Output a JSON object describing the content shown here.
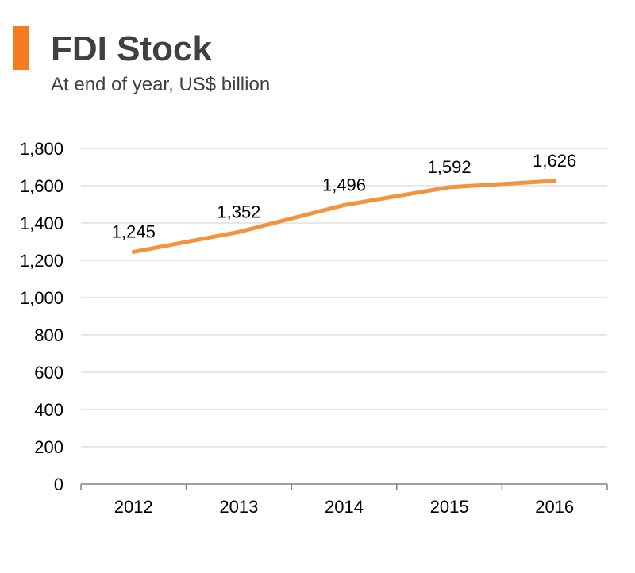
{
  "header": {
    "title": "FDI Stock",
    "subtitle": "At end of year, US$ billion"
  },
  "colors": {
    "accent": "#F47B20",
    "line": "#F4933F",
    "grid": "#D9D9D9",
    "axis": "#808080",
    "text": "#404040"
  },
  "chart_data": {
    "type": "line",
    "title": "FDI Stock",
    "subtitle": "At end of year, US$ billion",
    "xlabel": "",
    "ylabel": "",
    "categories": [
      "2012",
      "2013",
      "2014",
      "2015",
      "2016"
    ],
    "series": [
      {
        "name": "FDI Stock",
        "values": [
          1245,
          1352,
          1496,
          1592,
          1626
        ]
      }
    ],
    "data_labels": [
      "1,245",
      "1,352",
      "1,496",
      "1,592",
      "1,626"
    ],
    "ylim": [
      0,
      1800
    ],
    "yticks": [
      0,
      200,
      400,
      600,
      800,
      1000,
      1200,
      1400,
      1600,
      1800
    ],
    "ytick_labels": [
      "0",
      "200",
      "400",
      "600",
      "800",
      "1,000",
      "1,200",
      "1,400",
      "1,600",
      "1,800"
    ],
    "grid": true,
    "legend": "none"
  }
}
